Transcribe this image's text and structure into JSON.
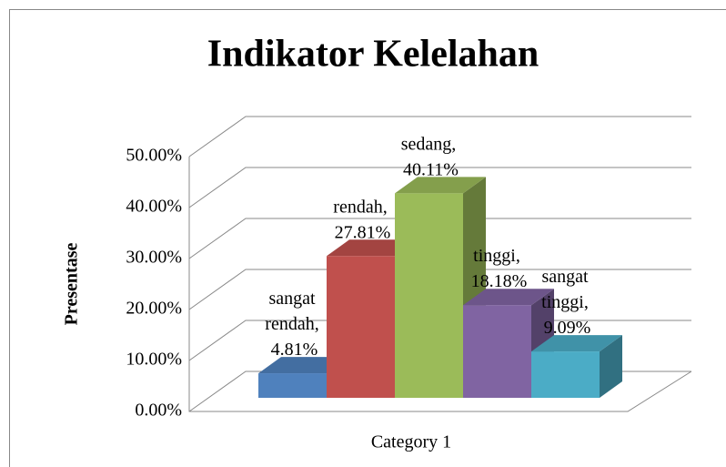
{
  "chart_data": {
    "type": "bar3d",
    "title": "Indikator Kelelahan",
    "y_label": "Presentase",
    "categories": [
      "Category 1"
    ],
    "series": [
      {
        "name": "sangat rendah",
        "color": "#4f81bd",
        "values": [
          4.81
        ],
        "value_labels": [
          "sangat rendah, 4.81%"
        ]
      },
      {
        "name": "rendah",
        "color": "#c0504d",
        "values": [
          27.81
        ],
        "value_labels": [
          "rendah, 27.81%"
        ]
      },
      {
        "name": "sedang",
        "color": "#9bbb59",
        "values": [
          40.11
        ],
        "value_labels": [
          "sedang, 40.11%"
        ]
      },
      {
        "name": "tinggi",
        "color": "#8064a2",
        "values": [
          18.18
        ],
        "value_labels": [
          "tinggi, 18.18%"
        ]
      },
      {
        "name": "sangat tinggi",
        "color": "#4bacc6",
        "values": [
          9.09
        ],
        "value_labels": [
          "sangat tinggi, 9.09%"
        ]
      }
    ],
    "ylim": [
      0,
      50
    ],
    "yticks": [
      {
        "value": 0,
        "label": "0.00%"
      },
      {
        "value": 10,
        "label": "10.00%"
      },
      {
        "value": 20,
        "label": "20.00%"
      },
      {
        "value": 30,
        "label": "30.00%"
      },
      {
        "value": 40,
        "label": "40.00%"
      },
      {
        "value": 50,
        "label": "50.00%"
      }
    ],
    "grid": true,
    "legend": false
  }
}
